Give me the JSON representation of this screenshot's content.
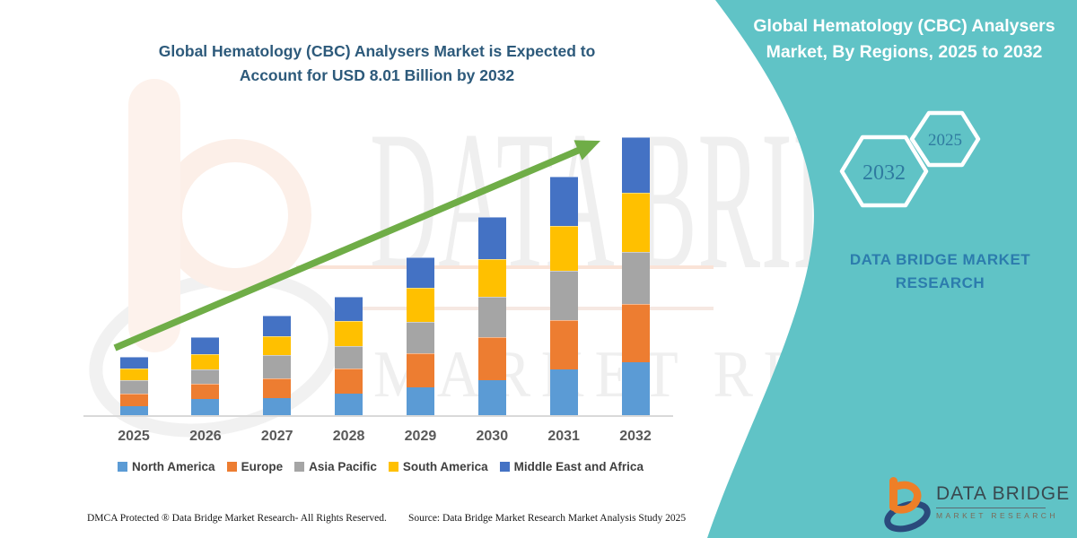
{
  "page": {
    "background": "#ffffff"
  },
  "chart": {
    "title": {
      "line1": "Global Hematology (CBC) Analysers Market is Expected to",
      "line2": "Account for USD 8.01 Billion by 2032",
      "color": "#2d5a7b"
    },
    "axis": {
      "baseline_color": "#d9d9d9",
      "tick_label_color": "#595959"
    },
    "legend_text_color": "#3f3f3f"
  },
  "chart_data": {
    "type": "bar",
    "stacked": true,
    "unit": "USD Billion",
    "categories": [
      "2025",
      "2026",
      "2027",
      "2028",
      "2029",
      "2030",
      "2031",
      "2032"
    ],
    "series": [
      {
        "name": "North America",
        "color": "#5B9BD5",
        "values": [
          0.28,
          0.49,
          0.52,
          0.64,
          0.82,
          1.03,
          1.34,
          1.55
        ]
      },
      {
        "name": "Europe",
        "color": "#ED7D31",
        "values": [
          0.36,
          0.44,
          0.57,
          0.72,
          0.98,
          1.24,
          1.42,
          1.68
        ]
      },
      {
        "name": "Asia Pacific",
        "color": "#A5A5A5",
        "values": [
          0.39,
          0.41,
          0.67,
          0.64,
          0.9,
          1.16,
          1.42,
          1.49
        ]
      },
      {
        "name": "South America",
        "color": "#FFC000",
        "values": [
          0.34,
          0.44,
          0.54,
          0.72,
          0.98,
          1.08,
          1.29,
          1.7
        ]
      },
      {
        "name": "Middle East and Africa",
        "color": "#4472C4",
        "values": [
          0.34,
          0.49,
          0.59,
          0.7,
          0.88,
          1.21,
          1.42,
          1.6
        ]
      }
    ],
    "totals": [
      1.71,
      2.27,
      2.89,
      3.42,
      4.56,
      5.72,
      6.89,
      8.02
    ],
    "ylim": [
      0,
      8.5
    ],
    "grid": false,
    "legend_position": "bottom",
    "annotations": {
      "trend_arrow_color": "#6fad47",
      "highlight_value": "USD 8.01 Billion by 2032"
    }
  },
  "right_panel": {
    "bg_color": "#60c3c6",
    "title": {
      "line1": "Global Hematology (CBC) Analysers",
      "line2": "Market, By Regions, 2025 to 2032",
      "color": "#ffffff"
    },
    "hexagons": {
      "back_year": "2032",
      "front_year": "2025",
      "year_color": "#2f7ba0",
      "outline_color": "#ffffff"
    },
    "brand": {
      "line1": "DATA BRIDGE MARKET",
      "line2": "RESEARCH",
      "color": "#2c7cad"
    }
  },
  "logo": {
    "name": "DATA BRIDGE",
    "subtitle": "MARKET RESEARCH",
    "b_orange": "#ee7f27",
    "b_navy": "#2a4a7c"
  },
  "footer": {
    "dmca": "DMCA Protected ® Data Bridge Market Research-  All Rights Reserved.",
    "source": "Source: Data Bridge Market Research  Market Analysis Study 2025"
  },
  "watermark": {
    "line1": "DATA BRIDGE",
    "line2": "MARKET RESEARCH"
  }
}
